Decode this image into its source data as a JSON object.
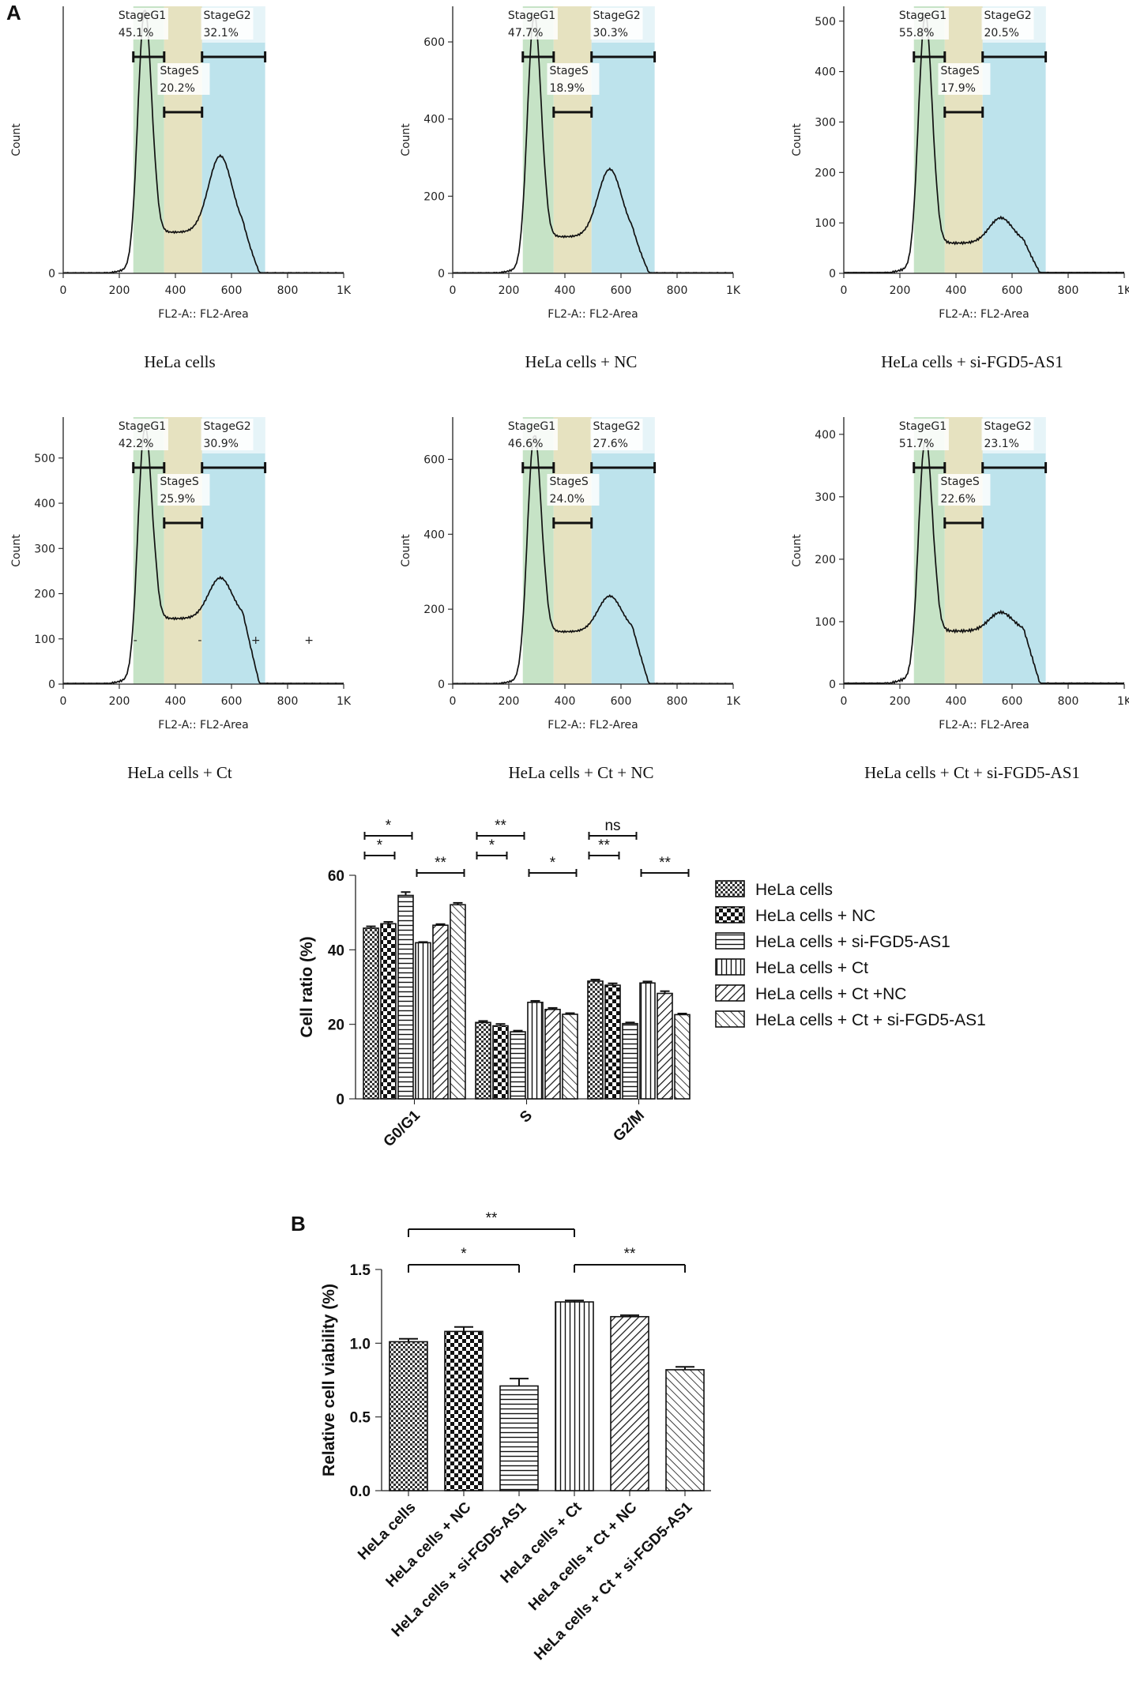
{
  "panels": {
    "a": "A",
    "b": "B"
  },
  "histograms": {
    "xlabel": "FL2-A:: FL2-Area",
    "ylabel": "Count",
    "x_ticks": [
      "0",
      "200",
      "400",
      "600",
      "800",
      "1K"
    ],
    "gate_labels": {
      "g1": "StageG1",
      "s": "StageS",
      "g2": "StageG2"
    },
    "colors": {
      "g1": "#c6e3c6",
      "s": "#e6e2c0",
      "g2": "#bde3ec"
    }
  },
  "chart_data": [
    {
      "type": "histogram",
      "caption": "HeLa cells",
      "ylim": [
        0,
        670
      ],
      "y_ticks": [
        0
      ],
      "peak_g1": 670,
      "peak_g2": 300,
      "valley": 105,
      "g1_pct": "45.1%",
      "s_pct": "20.2%",
      "g2_pct": "32.1%"
    },
    {
      "type": "histogram",
      "caption": "HeLa cells + NC",
      "ylim": [
        0,
        680
      ],
      "y_ticks": [
        0,
        200,
        400,
        600
      ],
      "peak_g1": 665,
      "peak_g2": 270,
      "valley": 95,
      "g1_pct": "47.7%",
      "s_pct": "18.9%",
      "g2_pct": "30.3%"
    },
    {
      "type": "histogram",
      "caption": "HeLa cells + si-FGD5-AS1",
      "ylim": [
        0,
        520
      ],
      "y_ticks": [
        0,
        100,
        200,
        300,
        400,
        500
      ],
      "peak_g1": 510,
      "peak_g2": 110,
      "valley": 60,
      "g1_pct": "55.8%",
      "s_pct": "17.9%",
      "g2_pct": "20.5%"
    },
    {
      "type": "histogram",
      "caption": "HeLa cells + Ct",
      "ylim": [
        0,
        580
      ],
      "y_ticks": [
        0,
        100,
        200,
        300,
        400,
        500
      ],
      "peak_g1": 560,
      "peak_g2": 235,
      "valley": 145,
      "g1_pct": "42.2%",
      "s_pct": "25.9%",
      "g2_pct": "30.9%",
      "marks": [
        "-",
        "-",
        "+",
        "+"
      ]
    },
    {
      "type": "histogram",
      "caption": "HeLa cells + Ct + NC",
      "ylim": [
        0,
        700
      ],
      "y_ticks": [
        0,
        200,
        400,
        600
      ],
      "peak_g1": 660,
      "peak_g2": 235,
      "valley": 140,
      "g1_pct": "46.6%",
      "s_pct": "24.0%",
      "g2_pct": "27.6%"
    },
    {
      "type": "histogram",
      "caption": "HeLa cells + Ct + si-FGD5-AS1",
      "ylim": [
        0,
        420
      ],
      "y_ticks": [
        0,
        100,
        200,
        300,
        400
      ],
      "peak_g1": 390,
      "peak_g2": 115,
      "valley": 85,
      "g1_pct": "51.7%",
      "s_pct": "22.6%",
      "g2_pct": "23.1%"
    },
    {
      "type": "bar",
      "title": "",
      "xlabel": "",
      "ylabel": "Cell ratio (%)",
      "ylim": [
        0,
        60
      ],
      "y_ticks": [
        0,
        20,
        40,
        60
      ],
      "categories": [
        "G0/G1",
        "S",
        "G2/M"
      ],
      "series": [
        {
          "name": "HeLa cells",
          "values": [
            45.8,
            20.5,
            31.6
          ],
          "errors": [
            0.5,
            0.4,
            0.4
          ],
          "pattern": "checker-small"
        },
        {
          "name": "HeLa cells + NC",
          "values": [
            47.0,
            19.6,
            30.5
          ],
          "errors": [
            0.5,
            0.5,
            0.5
          ],
          "pattern": "checker-large"
        },
        {
          "name": "HeLa cells + si-FGD5-AS1",
          "values": [
            54.6,
            18.0,
            20.2
          ],
          "errors": [
            0.9,
            0.3,
            0.3
          ],
          "pattern": "horizontal"
        },
        {
          "name": "HeLa cells + Ct",
          "values": [
            41.9,
            25.9,
            31.1
          ],
          "errors": [
            0.2,
            0.4,
            0.4
          ],
          "pattern": "vertical"
        },
        {
          "name": "HeLa cells + Ct +NC",
          "values": [
            46.6,
            24.0,
            28.3
          ],
          "errors": [
            0.3,
            0.4,
            0.6
          ],
          "pattern": "diag-up"
        },
        {
          "name": "HeLa cells + Ct + si-FGD5-AS1",
          "values": [
            52.1,
            22.7,
            22.6
          ],
          "errors": [
            0.5,
            0.3,
            0.3
          ],
          "pattern": "diag-down"
        }
      ],
      "significance": [
        {
          "category": "G0/G1",
          "from": 0,
          "to": 2,
          "label": "*",
          "level": 2
        },
        {
          "category": "G0/G1",
          "from": 0,
          "to": 1,
          "label": "*",
          "level": 1
        },
        {
          "category": "G0/G1",
          "from": 3,
          "to": 5,
          "label": "**",
          "level": 1
        },
        {
          "category": "S",
          "from": 0,
          "to": 2,
          "label": "**",
          "level": 2
        },
        {
          "category": "S",
          "from": 0,
          "to": 1,
          "label": "*",
          "level": 1
        },
        {
          "category": "S",
          "from": 3,
          "to": 5,
          "label": "*",
          "level": 1
        },
        {
          "category": "G2/M",
          "from": 0,
          "to": 2,
          "label": "ns",
          "level": 2
        },
        {
          "category": "G2/M",
          "from": 0,
          "to": 1,
          "label": "**",
          "level": 1
        },
        {
          "category": "G2/M",
          "from": 3,
          "to": 5,
          "label": "**",
          "level": 1
        }
      ]
    },
    {
      "type": "bar",
      "title": "",
      "xlabel": "",
      "ylabel": "Relative cell viability (%)",
      "ylim": [
        0,
        1.5
      ],
      "y_ticks": [
        "0.0",
        "0.5",
        "1.0",
        "1.5"
      ],
      "categories": [
        "HeLa cells",
        "HeLa cells + NC",
        "HeLa cells + si-FGD5-AS1",
        "HeLa cells + Ct",
        "HeLa cells + Ct + NC",
        "HeLa cells + Ct + si-FGD5-AS1"
      ],
      "values": [
        1.01,
        1.08,
        0.71,
        1.28,
        1.18,
        0.82
      ],
      "errors": [
        0.02,
        0.03,
        0.05,
        0.01,
        0.01,
        0.02
      ],
      "patterns": [
        "checker-small",
        "checker-large",
        "horizontal",
        "vertical",
        "diag-up",
        "diag-down"
      ],
      "significance": [
        {
          "from": 0,
          "to": 3,
          "label": "**",
          "level": 2
        },
        {
          "from": 0,
          "to": 2,
          "label": "*",
          "level": 1
        },
        {
          "from": 3,
          "to": 5,
          "label": "**",
          "level": 1
        }
      ]
    }
  ]
}
